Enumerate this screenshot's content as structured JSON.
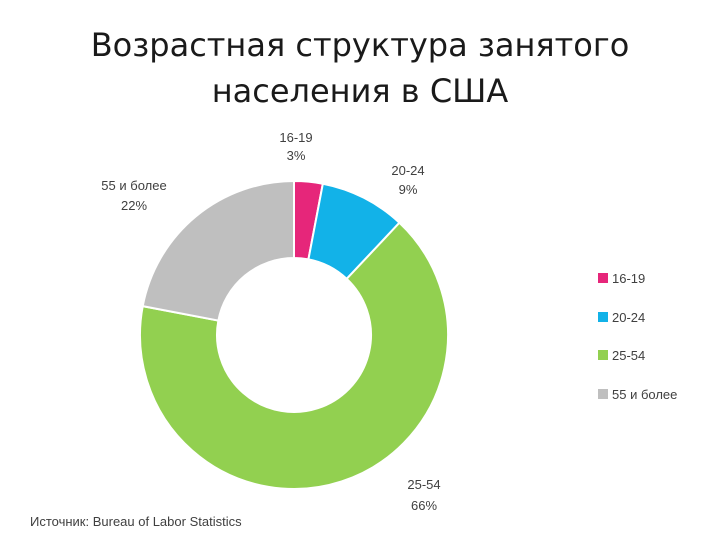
{
  "title_line1": "Возрастная структура занятого",
  "title_line2": "населения в США",
  "source": "Источник: Bureau of Labor Statistics",
  "chart_data": {
    "type": "pie",
    "style": "donut",
    "legend_position": "right",
    "categories": [
      "16-19",
      "20-24",
      "25-54",
      "55 и более"
    ],
    "values": [
      3,
      9,
      66,
      22
    ],
    "value_labels": [
      "3%",
      "9%",
      "66%",
      "22%"
    ],
    "colors": [
      "#e6267a",
      "#12b2e8",
      "#92d050",
      "#bfbfbf"
    ]
  }
}
